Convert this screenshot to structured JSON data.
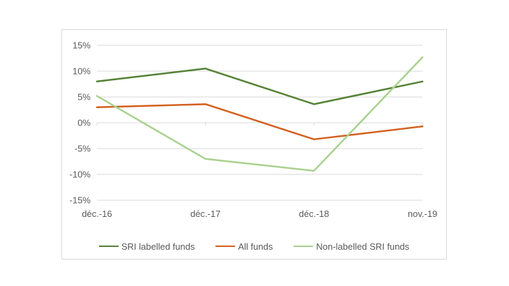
{
  "chart_data": {
    "type": "line",
    "categories": [
      "déc.-16",
      "déc.-17",
      "déc.-18",
      "nov.-19"
    ],
    "series": [
      {
        "name": "SRI labelled funds",
        "color": "#548235",
        "values": [
          8.0,
          10.5,
          3.6,
          8.0
        ]
      },
      {
        "name": "All funds",
        "color": "#d2601e",
        "values": [
          3.0,
          3.6,
          -3.2,
          -0.7
        ]
      },
      {
        "name": "Non-labelled SRI funds",
        "color": "#a9d18e",
        "values": [
          5.2,
          -7.0,
          -9.3,
          12.7
        ]
      }
    ],
    "title": "",
    "xlabel": "",
    "ylabel": "",
    "ylim": [
      -15,
      15
    ],
    "ytick_step": 5,
    "ytick_labels": [
      "15%",
      "10%",
      "5%",
      "0%",
      "-5%",
      "-10%",
      "-15%"
    ],
    "grid": true,
    "legend_position": "bottom"
  },
  "style": {
    "grid_color": "#d9d9d9",
    "border_color": "#d9d9d9",
    "text_color": "#595959",
    "background": "#ffffff"
  }
}
